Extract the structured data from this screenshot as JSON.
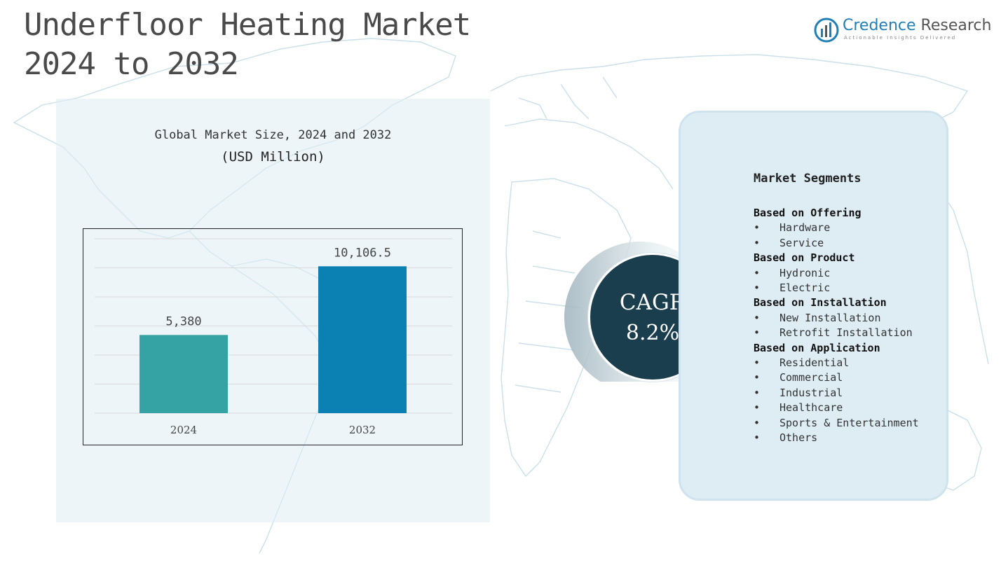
{
  "page": {
    "title_line1": "Underfloor Heating Market",
    "title_line2": "2024 to 2032"
  },
  "logo": {
    "name_part1": "Credence",
    "name_part2": "Research",
    "tagline": "Actionable Insights Delivered",
    "icon": "credence-research-logo-icon"
  },
  "colors": {
    "bar_2024": "#35a3a3",
    "bar_2032": "#0b80b3",
    "cagr_circle": "#1b3e4e",
    "logo_blue": "#1f7fb6"
  },
  "chart_data": {
    "type": "bar",
    "title": "Global Market Size, 2024 and 2032",
    "subtitle": "(USD Million)",
    "categories": [
      "2024",
      "2032"
    ],
    "values": [
      5380,
      10106.5
    ],
    "value_labels": [
      "5,380",
      "10,106.5"
    ],
    "ylim": [
      0,
      12000
    ],
    "grid": true,
    "legend": "none"
  },
  "cagr": {
    "label": "CAGR",
    "value": "8.2%"
  },
  "segments": {
    "heading": "Market Segments",
    "groups": [
      {
        "title": "Based on Offering",
        "items": [
          "Hardware",
          "Service"
        ]
      },
      {
        "title": "Based on Product",
        "items": [
          "Hydronic",
          "Electric"
        ]
      },
      {
        "title": "Based on Installation",
        "items": [
          "New Installation",
          "Retrofit Installation"
        ]
      },
      {
        "title": "Based on  Application",
        "items": [
          "Residential",
          "Commercial",
          "Industrial",
          "Healthcare",
          "Sports & Entertainment",
          "Others"
        ]
      }
    ],
    "bullet": "•"
  }
}
